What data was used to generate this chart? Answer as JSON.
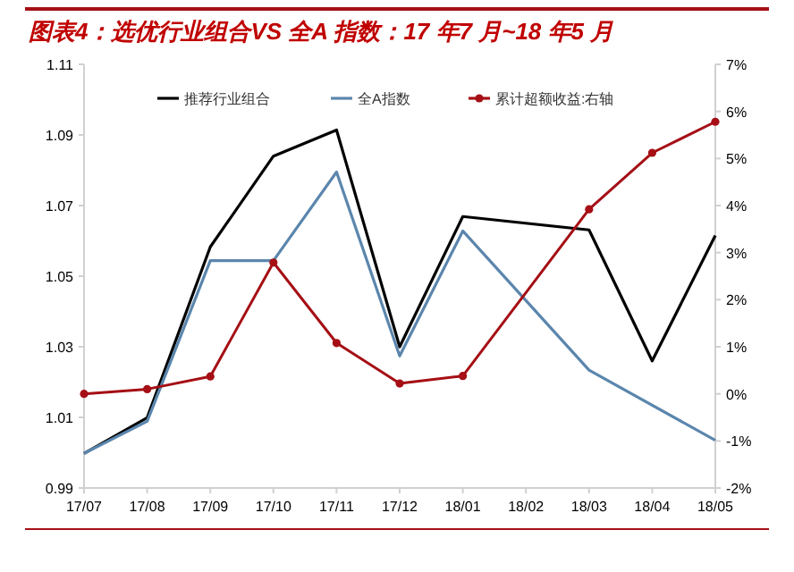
{
  "chart_data": {
    "type": "line",
    "title": "图表4：选优行业组合VS 全A 指数：17 年7 月~18 年5 月",
    "categories": [
      "17/07",
      "17/08",
      "17/09",
      "17/10",
      "17/11",
      "17/12",
      "18/01",
      "18/02",
      "18/03",
      "18/04",
      "18/05"
    ],
    "series": [
      {
        "name": "推荐行业组合",
        "color": "#000000",
        "marker": "none",
        "values": [
          0.9998,
          1.0099,
          1.0583,
          1.084,
          1.0914,
          1.03,
          1.0669,
          null,
          1.0631,
          1.026,
          1.0615
        ]
      },
      {
        "name": "全A指数",
        "color": "#5b86ad",
        "marker": "none",
        "values": [
          0.9998,
          1.0089,
          1.0544,
          1.0544,
          1.0795,
          1.0274,
          1.0628,
          null,
          1.0234,
          null,
          1.0035
        ]
      },
      {
        "name": "累计超额收益:右轴",
        "color": "#a50f15",
        "marker": "circle",
        "axis": "y2",
        "values": [
          0.0,
          0.1,
          0.37,
          2.79,
          1.08,
          0.22,
          0.38,
          null,
          3.92,
          5.12,
          5.78
        ]
      }
    ],
    "ylim": [
      0.99,
      1.11
    ],
    "yticks": [
      0.99,
      1.01,
      1.03,
      1.05,
      1.07,
      1.09,
      1.11
    ],
    "y2lim": [
      -2,
      7
    ],
    "y2ticks": [
      {
        "value": -2,
        "label": "-2%"
      },
      {
        "value": -1,
        "label": "-1%"
      },
      {
        "value": 0,
        "label": "0%"
      },
      {
        "value": 1,
        "label": "1%"
      },
      {
        "value": 2,
        "label": "2%"
      },
      {
        "value": 3,
        "label": "3%"
      },
      {
        "value": 4,
        "label": "4%"
      },
      {
        "value": 5,
        "label": "5%"
      },
      {
        "value": 6,
        "label": "6%"
      },
      {
        "value": 7,
        "label": "7%"
      }
    ],
    "grid": false,
    "legend": "top",
    "line_style": "solid"
  }
}
